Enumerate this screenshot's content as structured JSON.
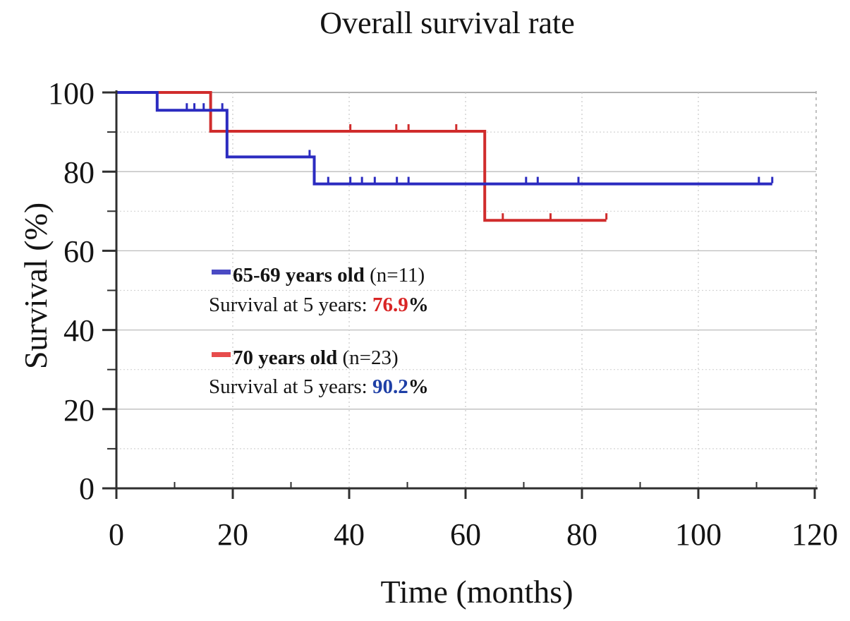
{
  "chart_data": {
    "type": "line",
    "subtype": "kaplan-meier-step",
    "title": "Overall survival rate",
    "xlabel": "Time (months)",
    "ylabel": "Survival (%)",
    "xlim": [
      0,
      120
    ],
    "ylim": [
      0,
      100
    ],
    "xticks": [
      0,
      20,
      40,
      60,
      80,
      100,
      120
    ],
    "yticks_major": [
      0,
      20,
      40,
      60,
      80,
      100
    ],
    "yticks_minor": [
      10,
      30,
      50,
      70,
      90
    ],
    "grid": true,
    "series": [
      {
        "name": "70 years old",
        "n": 23,
        "color": "#d02c2c",
        "steps": [
          [
            0,
            100
          ],
          [
            16.2,
            100
          ],
          [
            16.2,
            90.2
          ],
          [
            63.3,
            90.2
          ],
          [
            63.3,
            67.7
          ],
          [
            84.2,
            67.7
          ]
        ],
        "censor_marks": [
          [
            40.2,
            90.2
          ],
          [
            48.1,
            90.2
          ],
          [
            50.2,
            90.2
          ],
          [
            58.4,
            90.2
          ],
          [
            66.4,
            67.7
          ],
          [
            74.6,
            67.7
          ],
          [
            84.2,
            67.7
          ]
        ],
        "survival_at_5_years": "90.2%"
      },
      {
        "name": "65-69 years old",
        "n": 11,
        "color": "#2b2bc0",
        "steps": [
          [
            0,
            100
          ],
          [
            7,
            100
          ],
          [
            7,
            95.5
          ],
          [
            19,
            95.5
          ],
          [
            19,
            83.7
          ],
          [
            34,
            83.7
          ],
          [
            34,
            76.9
          ],
          [
            112.7,
            76.9
          ]
        ],
        "censor_marks": [
          [
            12.1,
            95.5
          ],
          [
            13.4,
            95.5
          ],
          [
            15,
            95.5
          ],
          [
            18.2,
            95.5
          ],
          [
            33.2,
            83.7
          ],
          [
            36.4,
            76.9
          ],
          [
            40.2,
            76.9
          ],
          [
            42.2,
            76.9
          ],
          [
            44.4,
            76.9
          ],
          [
            48.2,
            76.9
          ],
          [
            50.2,
            76.9
          ],
          [
            70.4,
            76.9
          ],
          [
            72.4,
            76.9
          ],
          [
            79.4,
            76.9
          ],
          [
            110.4,
            76.9
          ],
          [
            112.7,
            76.9
          ]
        ],
        "survival_at_5_years": "76.9%"
      }
    ],
    "legend_position": "center-left inside plot"
  },
  "legend": {
    "entries": [
      {
        "dash_color": "#4a4ac4",
        "label_bold": "65-69 years old",
        "label_rest": " (n=11)",
        "line2_prefix": "Survival at 5 years: ",
        "value": "76.9",
        "value_color": "#d92525",
        "suffix": "%"
      },
      {
        "dash_color": "#e74c4c",
        "label_bold": "70 years old",
        "label_rest": " (n=23)",
        "line2_prefix": "Survival at 5 years: ",
        "value": "90.2",
        "value_color": "#1e3fa6",
        "suffix": "%"
      }
    ]
  }
}
